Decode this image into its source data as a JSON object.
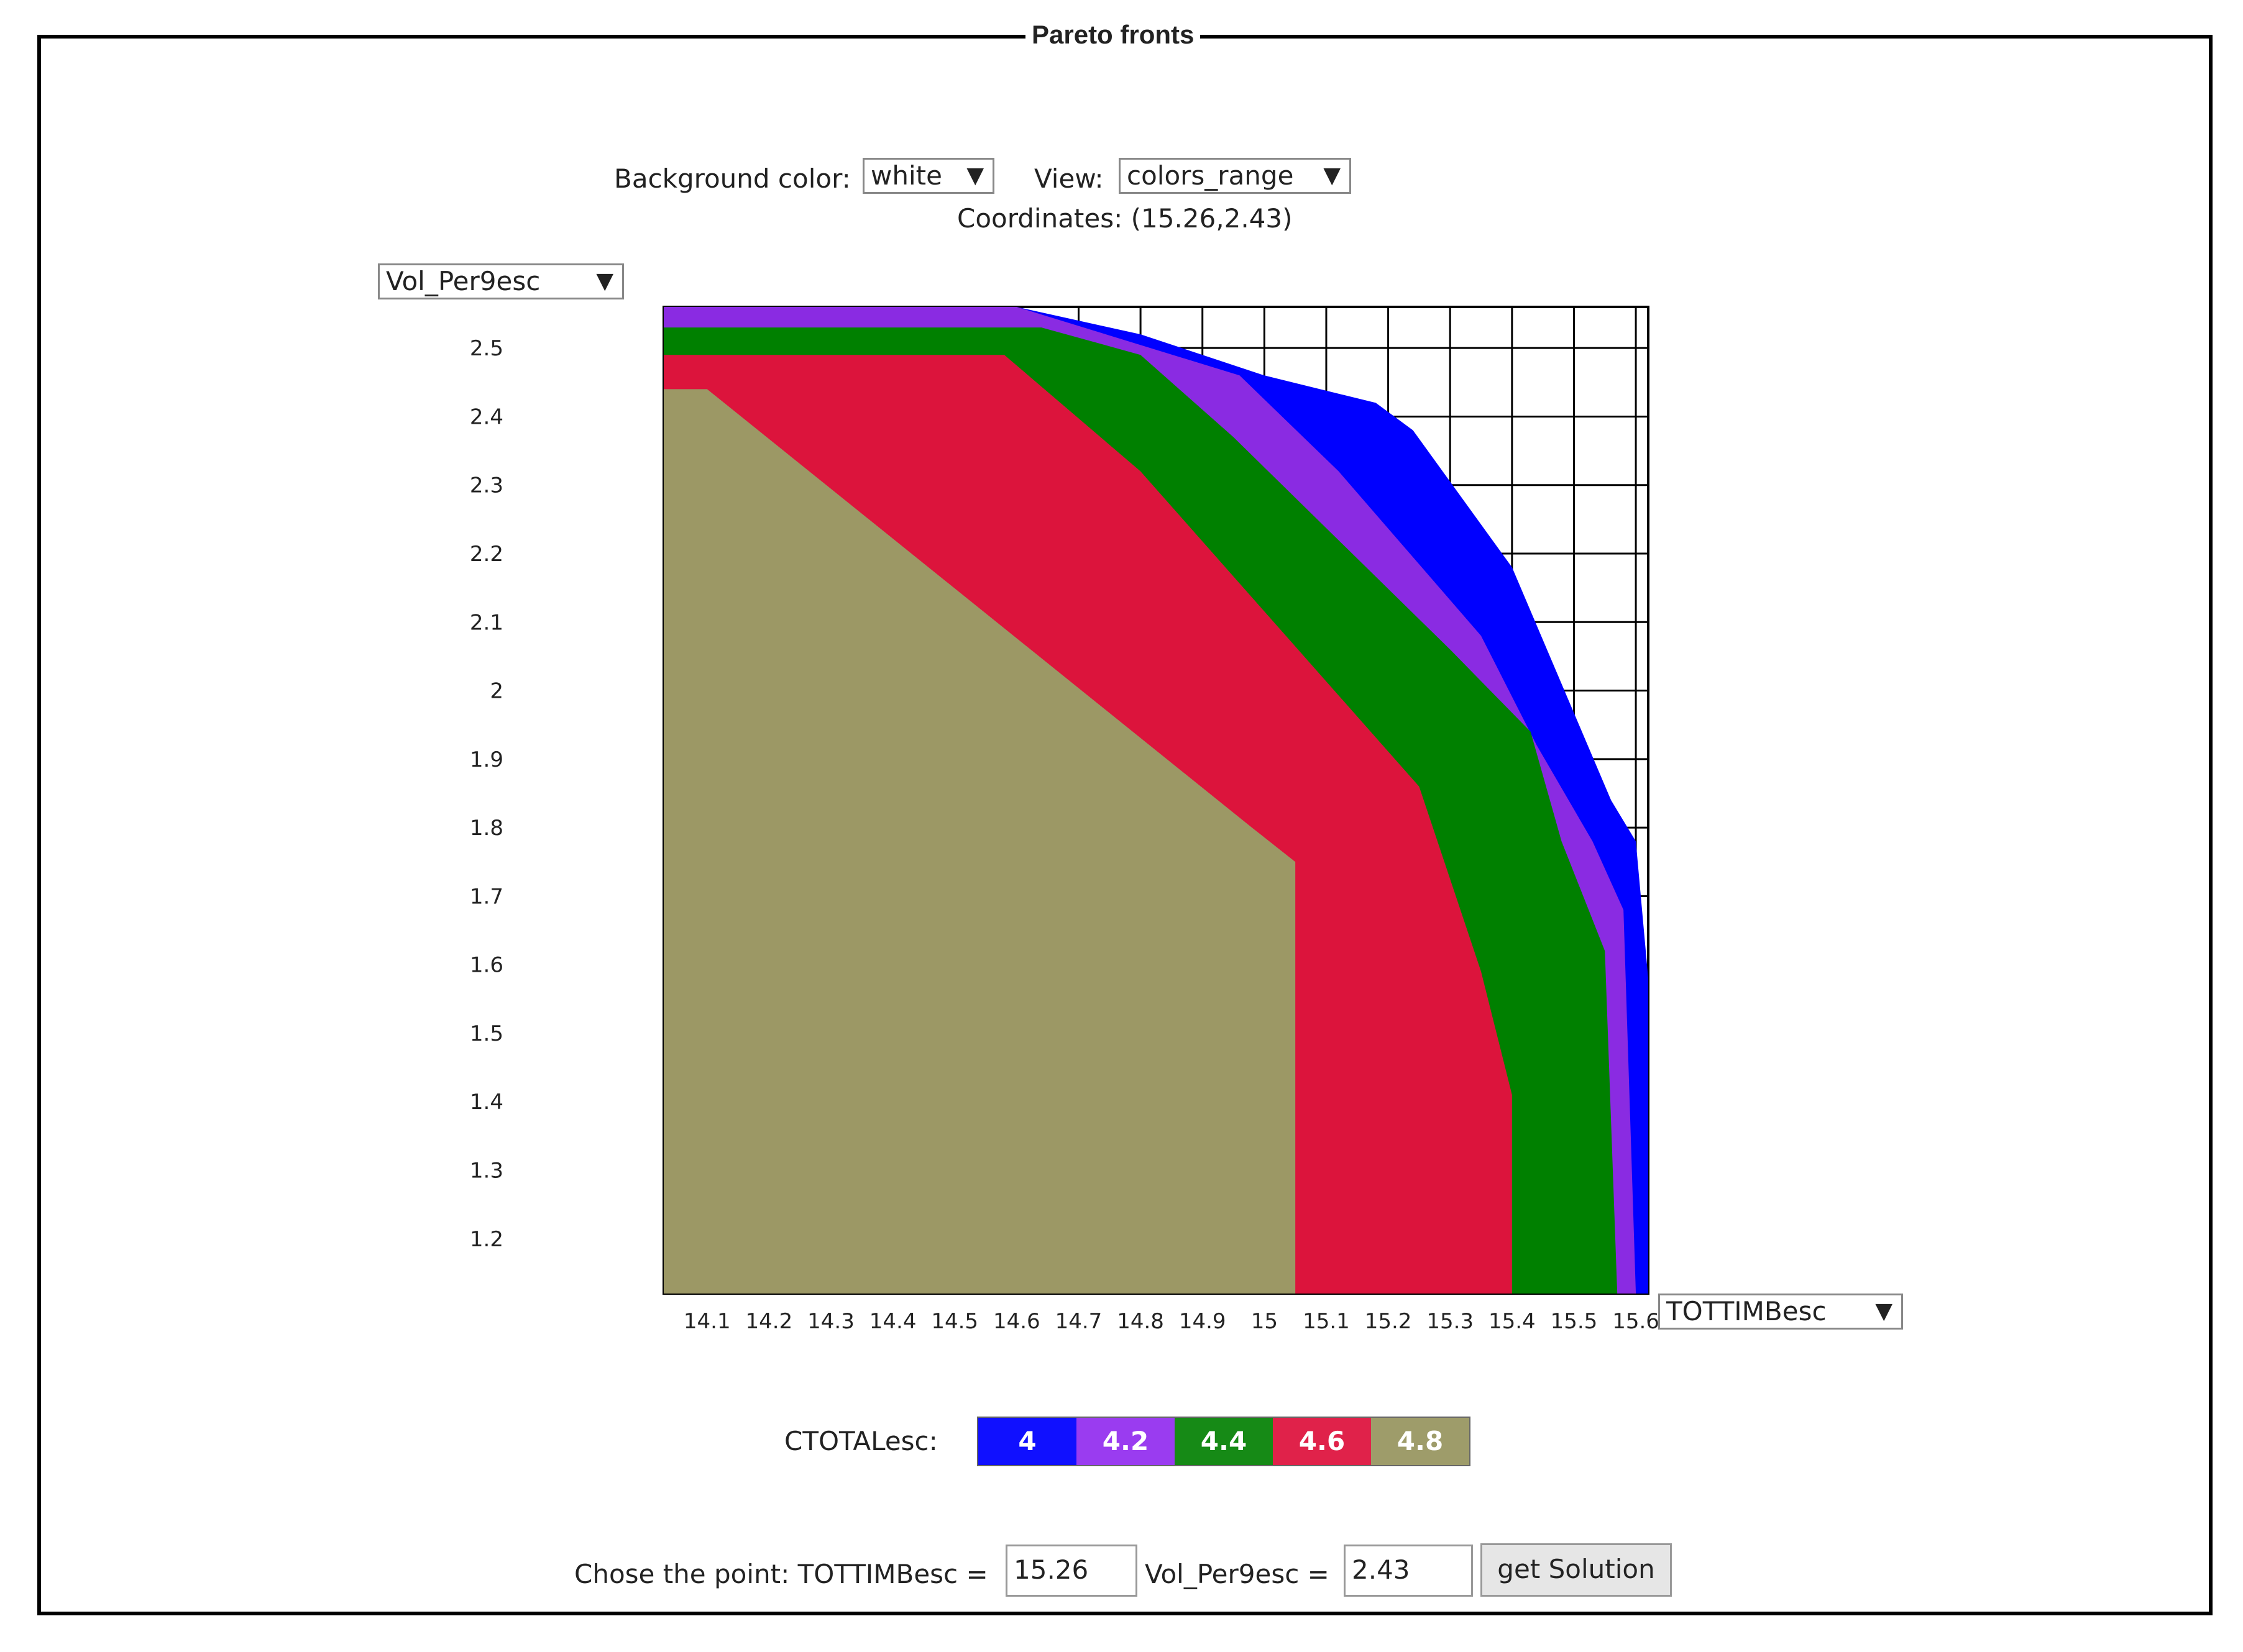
{
  "window_title": "Pareto fronts",
  "controls": {
    "background_label": "Background color:",
    "background_value": "white",
    "view_label": "View:",
    "view_value": "colors_range",
    "coordinates_text": "Coordinates: (15.26,2.43)",
    "y_axis_select": "Vol_Per9esc",
    "x_axis_select": "TOTTIMBesc"
  },
  "scale": {
    "label": "CTOTALesc:",
    "items": [
      {
        "label": "4",
        "color": "#1010ff"
      },
      {
        "label": "4.2",
        "color": "#9a3cf0"
      },
      {
        "label": "4.4",
        "color": "#168a16"
      },
      {
        "label": "4.6",
        "color": "#e0224a"
      },
      {
        "label": "4.8",
        "color": "#9e9c6a"
      }
    ]
  },
  "chart_data": {
    "type": "area",
    "x_ticks": [
      "14.1",
      "14.2",
      "14.3",
      "14.4",
      "14.5",
      "14.6",
      "14.7",
      "14.8",
      "14.9",
      "15",
      "15.1",
      "15.2",
      "15.3",
      "15.4",
      "15.5",
      "15.6"
    ],
    "y_ticks": [
      "2.5",
      "2.4",
      "2.3",
      "2.2",
      "2.1",
      "2",
      "1.9",
      "1.8",
      "1.7",
      "1.6",
      "1.5",
      "1.4",
      "1.3",
      "1.2"
    ],
    "xlim": [
      14.03,
      15.62
    ],
    "ylim": [
      1.12,
      2.56
    ],
    "series": [
      {
        "name": "4",
        "color": "#0000ff",
        "points": [
          [
            14.03,
            2.56
          ],
          [
            14.6,
            2.56
          ],
          [
            14.8,
            2.52
          ],
          [
            15.0,
            2.46
          ],
          [
            15.18,
            2.42
          ],
          [
            15.24,
            2.38
          ],
          [
            15.4,
            2.18
          ],
          [
            15.56,
            1.84
          ],
          [
            15.6,
            1.78
          ],
          [
            15.62,
            1.58
          ],
          [
            15.62,
            1.12
          ]
        ]
      },
      {
        "name": "4.2",
        "color": "#8a2be2",
        "points": [
          [
            14.03,
            2.56
          ],
          [
            14.6,
            2.56
          ],
          [
            14.96,
            2.46
          ],
          [
            15.12,
            2.32
          ],
          [
            15.35,
            2.08
          ],
          [
            15.44,
            1.92
          ],
          [
            15.53,
            1.78
          ],
          [
            15.58,
            1.68
          ],
          [
            15.6,
            1.12
          ]
        ]
      },
      {
        "name": "4.4",
        "color": "#008000",
        "points": [
          [
            14.03,
            2.53
          ],
          [
            14.64,
            2.53
          ],
          [
            14.8,
            2.49
          ],
          [
            14.95,
            2.37
          ],
          [
            15.3,
            2.06
          ],
          [
            15.43,
            1.94
          ],
          [
            15.48,
            1.78
          ],
          [
            15.55,
            1.62
          ],
          [
            15.57,
            1.12
          ]
        ]
      },
      {
        "name": "4.6",
        "color": "#dc143c",
        "points": [
          [
            14.03,
            2.49
          ],
          [
            14.58,
            2.49
          ],
          [
            14.8,
            2.32
          ],
          [
            15.25,
            1.86
          ],
          [
            15.35,
            1.59
          ],
          [
            15.4,
            1.41
          ],
          [
            15.4,
            1.12
          ]
        ]
      },
      {
        "name": "4.8",
        "color": "#9c9865",
        "points": [
          [
            14.03,
            2.44
          ],
          [
            14.1,
            2.44
          ],
          [
            14.98,
            1.8
          ],
          [
            15.05,
            1.75
          ],
          [
            15.05,
            1.12
          ]
        ]
      }
    ]
  },
  "point_form": {
    "label": "Chose the point: TOTTIMBesc =",
    "x_value": "15.26",
    "y_label": "Vol_Per9esc =",
    "y_value": "2.43",
    "button_label": "get Solution"
  }
}
